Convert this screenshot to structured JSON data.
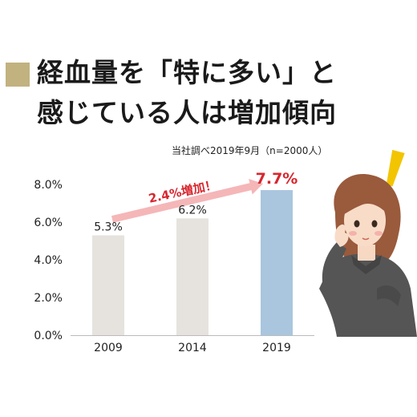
{
  "headline": {
    "line1": "経血量を「特に多い」と",
    "line2": "感じている人は増加傾向"
  },
  "source_note": "当社調べ2019年9月（n=2000人）",
  "callout": {
    "text": "2.4%増加！"
  },
  "colors": {
    "marker": "#c2b280",
    "bar": "#e6e3df",
    "bar_highlight": "#a9c6de",
    "arrow": "#f5b6b8",
    "callout_text": "#d8262e",
    "exclamation": "#f2c500"
  },
  "chart_data": {
    "type": "bar",
    "title": "経血量を「特に多い」と感じている人は増加傾向",
    "categories": [
      "2009",
      "2014",
      "2019"
    ],
    "values": [
      5.3,
      6.2,
      7.7
    ],
    "value_labels": [
      "5.3%",
      "6.2%",
      "7.7%"
    ],
    "highlight_index": 2,
    "y_ticks": [
      "0.0%",
      "2.0%",
      "4.0%",
      "6.0%",
      "8.0%"
    ],
    "ylim": [
      0,
      8
    ],
    "xlabel": "",
    "ylabel": "",
    "grid": false,
    "legend": false
  }
}
